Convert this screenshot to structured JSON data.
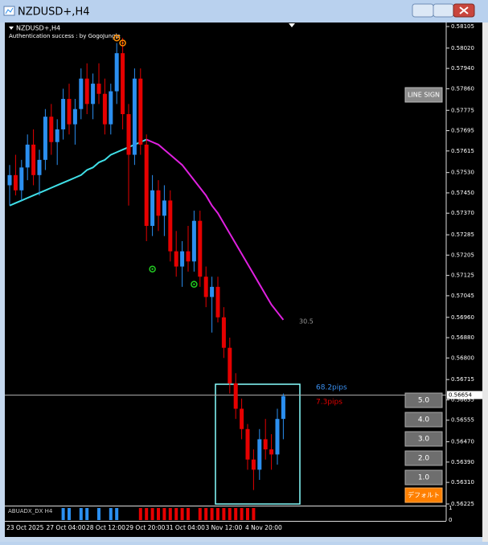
{
  "window_title": "NZDUSD+,H4",
  "header": {
    "symbol": "NZDUSD+,H4",
    "status": "Authentication success : by GogoJungle"
  },
  "buttons": {
    "line_sign": "LINE SIGN",
    "levels": [
      "5.0",
      "4.0",
      "3.0",
      "2.0",
      "1.0"
    ],
    "default": "デフォルト"
  },
  "chart_data": {
    "type": "candlestick",
    "up_color": "#2b8ff0",
    "down_color": "#e60000",
    "ylim": [
      0.562218,
      0.581208
    ],
    "yticks": [
      0.58105,
      {
        "value": 0.5802,
        "label": "0.58020"
      },
      {
        "value": 0.5794,
        "label": "0.57940"
      },
      {
        "value": 0.5786,
        "label": "0.57860"
      },
      0.57775,
      0.57695,
      0.57615,
      {
        "value": 0.5753,
        "label": "0.57530"
      },
      {
        "value": 0.5745,
        "label": "0.57450"
      },
      {
        "value": 0.5737,
        "label": "0.57370"
      },
      0.57285,
      0.57205,
      0.57125,
      0.57045,
      {
        "value": 0.5696,
        "label": "0.56960"
      },
      {
        "value": 0.5688,
        "label": "0.56880"
      },
      {
        "value": 0.568,
        "label": "0.56800"
      },
      0.56715,
      0.56635,
      0.56555,
      {
        "value": 0.5647,
        "label": "0.56470"
      },
      {
        "value": 0.5639,
        "label": "0.56390"
      },
      {
        "value": 0.5631,
        "label": "0.56310"
      },
      0.56225
    ],
    "x_labels": [
      "23 Oct 2025",
      "27 Oct 04:00",
      "28 Oct 12:00",
      "29 Oct 20:00",
      "31 Oct 04:00",
      "3 Nov 12:00",
      "4 Nov 20:00"
    ],
    "current_price": 0.56654,
    "current_price_label": "0.56654",
    "open": [
      0.5748,
      0.5752,
      0.5746,
      0.5755,
      0.5764,
      0.5752,
      0.5758,
      0.5775,
      0.5765,
      0.577,
      0.5782,
      0.5772,
      0.5778,
      0.579,
      0.578,
      0.5788,
      0.5784,
      0.5772,
      0.5785,
      0.58,
      0.5776,
      0.576,
      0.579,
      0.5764,
      0.5732,
      0.5746,
      0.5736,
      0.5742,
      0.5722,
      0.5716,
      0.5722,
      0.5718,
      0.5734,
      0.5712,
      0.5704,
      0.5708,
      0.5696,
      0.5684,
      0.567,
      0.566,
      0.5652,
      0.564,
      0.5636,
      0.5648,
      0.5644,
      0.5642,
      0.5656
    ],
    "high": [
      0.5756,
      0.576,
      0.5758,
      0.5768,
      0.577,
      0.5762,
      0.5778,
      0.578,
      0.5774,
      0.5786,
      0.5788,
      0.5782,
      0.5794,
      0.5796,
      0.5792,
      0.5796,
      0.579,
      0.5788,
      0.5804,
      0.5806,
      0.578,
      0.5794,
      0.5794,
      0.5768,
      0.5752,
      0.575,
      0.5748,
      0.5746,
      0.573,
      0.5726,
      0.5732,
      0.5738,
      0.5738,
      0.5716,
      0.5712,
      0.5712,
      0.57,
      0.5688,
      0.5674,
      0.5664,
      0.5654,
      0.5644,
      0.5652,
      0.5656,
      0.565,
      0.566,
      0.5666
    ],
    "low": [
      0.574,
      0.5744,
      0.5742,
      0.575,
      0.5748,
      0.5744,
      0.5754,
      0.576,
      0.5756,
      0.5766,
      0.5768,
      0.5764,
      0.5774,
      0.5776,
      0.5774,
      0.578,
      0.5768,
      0.5768,
      0.578,
      0.577,
      0.574,
      0.5756,
      0.576,
      0.5726,
      0.5728,
      0.573,
      0.5728,
      0.5718,
      0.5712,
      0.5708,
      0.5714,
      0.5714,
      0.5708,
      0.57,
      0.569,
      0.5694,
      0.568,
      0.5666,
      0.5656,
      0.5648,
      0.5636,
      0.5628,
      0.5632,
      0.564,
      0.5636,
      0.5638,
      0.5648
    ],
    "close": [
      0.5752,
      0.5746,
      0.5755,
      0.5764,
      0.5752,
      0.5758,
      0.5775,
      0.5765,
      0.577,
      0.5782,
      0.5772,
      0.5778,
      0.579,
      0.578,
      0.5788,
      0.5784,
      0.5772,
      0.5785,
      0.58,
      0.5776,
      0.576,
      0.579,
      0.5764,
      0.5732,
      0.5746,
      0.5736,
      0.5742,
      0.5722,
      0.5716,
      0.5722,
      0.5718,
      0.5734,
      0.5712,
      0.5704,
      0.5708,
      0.5696,
      0.5684,
      0.567,
      0.566,
      0.5652,
      0.564,
      0.5636,
      0.5648,
      0.5644,
      0.5642,
      0.5656,
      0.5665
    ],
    "lines": [
      {
        "color": "#40e0e8",
        "values": [
          0.574,
          0.5741,
          0.5742,
          0.5743,
          0.5744,
          0.5745,
          0.5746,
          0.5747,
          0.5748,
          0.5749,
          0.575,
          0.5751,
          0.5752,
          0.5754,
          0.5755,
          0.5757,
          0.5758,
          0.576,
          0.5761,
          0.5762,
          0.5763,
          0.5764,
          0.5765,
          0.5766,
          null,
          null,
          null,
          null,
          null,
          null,
          null,
          null,
          null,
          null,
          null,
          null,
          null,
          null,
          null,
          null,
          null,
          null,
          null,
          null,
          null,
          null,
          null
        ]
      },
      {
        "color": "#e020e0",
        "values": [
          null,
          null,
          null,
          null,
          null,
          null,
          null,
          null,
          null,
          null,
          null,
          null,
          null,
          null,
          null,
          null,
          null,
          null,
          null,
          null,
          null,
          null,
          null,
          0.5766,
          0.5765,
          0.5764,
          0.5762,
          0.576,
          0.5758,
          0.5756,
          0.5753,
          0.575,
          0.5747,
          0.5744,
          0.574,
          0.5737,
          0.5733,
          0.5729,
          0.5725,
          0.5721,
          0.5717,
          0.5713,
          0.5709,
          0.5705,
          0.5701,
          0.5698,
          0.5695
        ]
      }
    ],
    "signals": [
      {
        "bar": 19,
        "price": 0.5804,
        "color": "#ff8c00"
      },
      {
        "bar": 18,
        "price": 0.5806,
        "color": "#ff8c00"
      },
      {
        "bar": 24,
        "price": 0.5715,
        "color": "#22cc22"
      },
      {
        "bar": 31,
        "price": 0.5709,
        "color": "#22cc22"
      }
    ],
    "annotations": {
      "ma_value": "30.5",
      "pips_up": "68.2pips",
      "pips_down": "7.3pips"
    },
    "indicator": {
      "name": "ABUADX_DX H4",
      "ylim": [
        0,
        1
      ],
      "yticks": [
        1,
        0
      ],
      "series": [
        {
          "color": "#2b8ff0",
          "values": [
            0,
            0,
            0,
            0,
            0,
            0,
            0,
            0,
            0,
            1,
            1,
            0,
            1,
            1,
            0,
            1,
            0,
            1,
            1,
            0,
            0,
            0,
            0,
            0,
            0,
            0,
            0,
            0,
            0,
            0,
            0,
            0,
            0,
            0,
            0,
            0,
            0,
            0,
            0,
            0,
            0,
            0,
            0,
            0,
            0,
            0,
            0
          ]
        },
        {
          "color": "#e60000",
          "values": [
            0,
            0,
            0,
            0,
            0,
            0,
            0,
            0,
            0,
            0,
            0,
            0,
            0,
            0,
            0,
            0,
            0,
            0,
            0,
            0,
            0,
            0,
            1,
            1,
            1,
            1,
            1,
            1,
            1,
            1,
            1,
            0,
            1,
            1,
            1,
            1,
            1,
            1,
            1,
            1,
            1,
            1,
            0,
            0,
            0,
            0,
            0
          ]
        }
      ]
    }
  }
}
